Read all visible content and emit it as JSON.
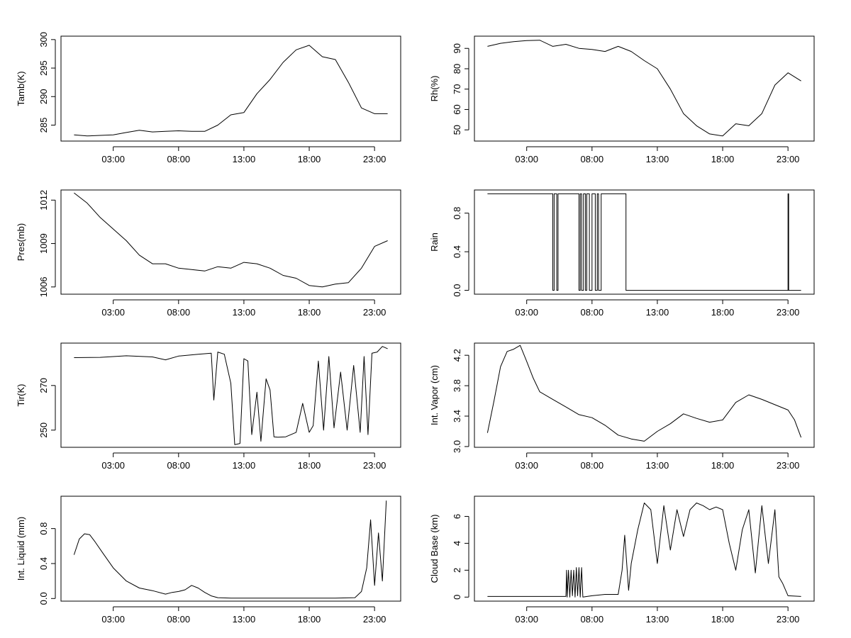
{
  "chart_data": [
    {
      "type": "line",
      "ylabel": "Tamb(K)",
      "xticks": [
        "03:00",
        "08:00",
        "13:00",
        "18:00",
        "23:00"
      ],
      "xtick_hours": [
        3,
        8,
        13,
        18,
        23
      ],
      "xlim": [
        -1,
        25
      ],
      "ylim": [
        282.2,
        300.6
      ],
      "yticks": [
        285,
        290,
        295,
        300
      ],
      "ytick_labels": [
        "285",
        "290",
        "295",
        "300"
      ],
      "series": [
        {
          "name": "Tamb(K)",
          "x": [
            0,
            1,
            2,
            3,
            4,
            5,
            6,
            7,
            8,
            9,
            10,
            11,
            12,
            13,
            14,
            15,
            16,
            17,
            18,
            19,
            20,
            21,
            22,
            23,
            24
          ],
          "y": [
            283.3,
            283.1,
            283.2,
            283.3,
            283.7,
            284.1,
            283.8,
            283.9,
            284.0,
            283.9,
            283.9,
            285.0,
            286.8,
            287.2,
            290.5,
            293.0,
            296.0,
            298.2,
            299.0,
            297.0,
            296.5,
            292.5,
            288.0,
            287.0,
            287.0
          ]
        }
      ]
    },
    {
      "type": "line",
      "ylabel": "Rh(%)",
      "xticks": [
        "03:00",
        "08:00",
        "13:00",
        "18:00",
        "23:00"
      ],
      "xtick_hours": [
        3,
        8,
        13,
        18,
        23
      ],
      "xlim": [
        -1,
        25
      ],
      "ylim": [
        44.5,
        96.0
      ],
      "yticks": [
        50,
        60,
        70,
        80,
        90
      ],
      "ytick_labels": [
        "50",
        "60",
        "70",
        "80",
        "90"
      ],
      "series": [
        {
          "name": "Rh(%)",
          "x": [
            0,
            1,
            2,
            3,
            4,
            5,
            6,
            7,
            8,
            9,
            10,
            11,
            12,
            13,
            14,
            15,
            16,
            17,
            18,
            19,
            20,
            21,
            22,
            23,
            24
          ],
          "y": [
            91,
            92.5,
            93.3,
            93.8,
            94,
            91,
            92,
            90,
            89.5,
            88.5,
            91,
            88.5,
            84,
            80,
            70,
            58,
            52,
            48,
            47,
            53,
            52,
            58,
            72,
            78,
            74
          ]
        }
      ]
    },
    {
      "type": "line",
      "ylabel": "Pres(mb)",
      "xticks": [
        "03:00",
        "08:00",
        "13:00",
        "18:00",
        "23:00"
      ],
      "xtick_hours": [
        3,
        8,
        13,
        18,
        23
      ],
      "xlim": [
        -1,
        25
      ],
      "ylim": [
        1005.5,
        1012.7
      ],
      "yticks": [
        1006,
        1009,
        1012
      ],
      "ytick_labels": [
        "1006",
        "1009",
        "1012"
      ],
      "series": [
        {
          "name": "Pres(mb)",
          "x": [
            0,
            1,
            2,
            3,
            4,
            5,
            6,
            7,
            8,
            9,
            10,
            11,
            12,
            13,
            14,
            15,
            16,
            17,
            18,
            19,
            20,
            21,
            22,
            23,
            24
          ],
          "y": [
            1012.5,
            1011.8,
            1010.8,
            1010.0,
            1009.2,
            1008.2,
            1007.6,
            1007.6,
            1007.3,
            1007.2,
            1007.1,
            1007.4,
            1007.3,
            1007.7,
            1007.6,
            1007.3,
            1006.8,
            1006.6,
            1006.1,
            1006.0,
            1006.2,
            1006.3,
            1007.3,
            1008.8,
            1009.2
          ]
        }
      ]
    },
    {
      "type": "line",
      "ylabel": "Rain",
      "xticks": [
        "03:00",
        "08:00",
        "13:00",
        "18:00",
        "23:00"
      ],
      "xtick_hours": [
        3,
        8,
        13,
        18,
        23
      ],
      "xlim": [
        -1,
        25
      ],
      "ylim": [
        -0.04,
        1.04
      ],
      "yticks": [
        0.0,
        0.4,
        0.8
      ],
      "ytick_labels": [
        "0.0",
        "0.4",
        "0.8"
      ],
      "series": [
        {
          "name": "Rain",
          "x": [
            0,
            5.0,
            5.0,
            5.1,
            5.1,
            5.3,
            5.3,
            5.4,
            5.4,
            7.0,
            7.0,
            7.1,
            7.1,
            7.2,
            7.2,
            7.35,
            7.35,
            7.5,
            7.5,
            7.6,
            7.6,
            7.8,
            7.8,
            8.0,
            8.0,
            8.25,
            8.25,
            8.4,
            8.4,
            8.5,
            8.5,
            8.7,
            8.7,
            10.6,
            10.6,
            10.7,
            10.7,
            23.0,
            23.0,
            23.05,
            23.05,
            24
          ],
          "y": [
            1,
            1,
            0,
            0,
            1,
            1,
            0,
            0,
            1,
            1,
            0,
            0,
            1,
            1,
            0,
            0,
            1,
            1,
            0,
            0,
            1,
            1,
            0,
            0,
            1,
            1,
            0,
            0,
            1,
            1,
            0,
            0,
            1,
            1,
            0,
            0,
            0,
            0,
            1,
            1,
            0,
            0
          ]
        }
      ]
    },
    {
      "type": "line",
      "ylabel": "Tir(K)",
      "xticks": [
        "03:00",
        "08:00",
        "13:00",
        "18:00",
        "23:00"
      ],
      "xtick_hours": [
        3,
        8,
        13,
        18,
        23
      ],
      "xlim": [
        -1,
        25
      ],
      "ylim": [
        242.3,
        289.0
      ],
      "yticks": [
        250,
        270
      ],
      "ytick_labels": [
        "250",
        "270"
      ],
      "series": [
        {
          "name": "Tir(K)",
          "x": [
            0,
            2,
            4,
            6,
            7,
            8,
            9.5,
            10.5,
            10.7,
            11,
            11.5,
            12,
            12.3,
            12.7,
            13.0,
            13.3,
            13.6,
            14.0,
            14.3,
            14.7,
            15.0,
            15.3,
            15.6,
            16.2,
            17.0,
            17.5,
            18.0,
            18.3,
            18.7,
            19.1,
            19.5,
            19.9,
            20.4,
            20.9,
            21.4,
            21.9,
            22.2,
            22.5,
            22.8,
            23.2,
            23.6,
            24
          ],
          "y": [
            282.5,
            282.6,
            283.3,
            282.8,
            281.5,
            283.2,
            284.0,
            284.5,
            263.5,
            285.0,
            284.0,
            271.0,
            243.5,
            244.0,
            282.0,
            281.0,
            248.0,
            267.0,
            245.0,
            273.0,
            268.0,
            247.0,
            246.8,
            247.0,
            249.0,
            262.0,
            249.0,
            252.0,
            281.0,
            250.0,
            283.0,
            251.0,
            276.0,
            250.0,
            279.0,
            249.0,
            283.0,
            248.0,
            284.5,
            285.0,
            287.5,
            286.5
          ]
        }
      ]
    },
    {
      "type": "line",
      "ylabel": "Int. Vapor (cm)",
      "xticks": [
        "03:00",
        "08:00",
        "13:00",
        "18:00",
        "23:00"
      ],
      "xtick_hours": [
        3,
        8,
        13,
        18,
        23
      ],
      "xlim": [
        -1,
        25
      ],
      "ylim": [
        2.99,
        4.36
      ],
      "yticks": [
        3.0,
        3.4,
        3.8,
        4.2
      ],
      "ytick_labels": [
        "3.0",
        "3.4",
        "3.8",
        "4.2"
      ],
      "series": [
        {
          "name": "Int. Vapor (cm)",
          "x": [
            0,
            0.5,
            1,
            1.5,
            2,
            2.5,
            3,
            3.5,
            4,
            5,
            6,
            7,
            8,
            9,
            10,
            11,
            12,
            13,
            14,
            15,
            16,
            17,
            18,
            19,
            20,
            21,
            22,
            23,
            23.5,
            24
          ],
          "y": [
            3.18,
            3.6,
            4.05,
            4.25,
            4.28,
            4.33,
            4.12,
            3.9,
            3.72,
            3.62,
            3.52,
            3.42,
            3.38,
            3.28,
            3.15,
            3.1,
            3.07,
            3.2,
            3.3,
            3.43,
            3.37,
            3.32,
            3.35,
            3.58,
            3.68,
            3.62,
            3.55,
            3.48,
            3.35,
            3.12
          ]
        }
      ]
    },
    {
      "type": "line",
      "ylabel": "Int. Liquid (mm)",
      "xticks": [
        "03:00",
        "08:00",
        "13:00",
        "18:00",
        "23:00"
      ],
      "xtick_hours": [
        3,
        8,
        13,
        18,
        23
      ],
      "xlim": [
        -1,
        25
      ],
      "ylim": [
        -0.03,
        1.17
      ],
      "yticks": [
        0.0,
        0.4,
        0.8
      ],
      "ytick_labels": [
        "0.0",
        "0.4",
        "0.8"
      ],
      "series": [
        {
          "name": "Int. Liquid (mm)",
          "x": [
            0,
            0.4,
            0.8,
            1.2,
            1.6,
            2.2,
            3,
            4,
            5,
            6,
            7,
            7.5,
            8,
            8.5,
            9,
            9.5,
            10,
            10.5,
            11,
            12,
            14,
            16,
            18,
            20,
            21.5,
            22.0,
            22.4,
            22.7,
            23.0,
            23.3,
            23.6,
            23.9
          ],
          "y": [
            0.5,
            0.68,
            0.74,
            0.73,
            0.65,
            0.52,
            0.35,
            0.2,
            0.12,
            0.09,
            0.05,
            0.07,
            0.08,
            0.1,
            0.15,
            0.12,
            0.07,
            0.03,
            0.01,
            0.005,
            0.005,
            0.005,
            0.005,
            0.005,
            0.01,
            0.08,
            0.35,
            0.9,
            0.15,
            0.75,
            0.2,
            1.12
          ]
        }
      ]
    },
    {
      "type": "line",
      "ylabel": "Cloud Base (km)",
      "xticks": [
        "03:00",
        "08:00",
        "13:00",
        "18:00",
        "23:00"
      ],
      "xtick_hours": [
        3,
        8,
        13,
        18,
        23
      ],
      "xlim": [
        -1,
        25
      ],
      "ylim": [
        -0.3,
        7.5
      ],
      "yticks": [
        0,
        2,
        4,
        6
      ],
      "ytick_labels": [
        "0",
        "2",
        "4",
        "6"
      ],
      "series": [
        {
          "name": "Cloud Base (km)",
          "x": [
            0,
            6.0,
            6.05,
            6.1,
            6.2,
            6.3,
            6.4,
            6.5,
            6.6,
            6.7,
            6.8,
            6.9,
            7.0,
            7.1,
            7.2,
            7.3,
            8,
            9,
            10,
            10.3,
            10.5,
            10.8,
            11,
            11.5,
            12,
            12.5,
            13,
            13.5,
            14,
            14.5,
            15,
            15.5,
            16,
            16.5,
            17,
            17.5,
            18,
            18.5,
            19,
            19.5,
            20,
            20.5,
            21,
            21.5,
            22,
            22.3,
            22.6,
            23,
            24
          ],
          "y": [
            0.05,
            0.05,
            2.0,
            0.0,
            2.0,
            0.0,
            2.0,
            0.1,
            2.0,
            0.0,
            2.2,
            0.1,
            2.2,
            0.0,
            2.2,
            0.0,
            0.1,
            0.2,
            0.2,
            2.0,
            4.6,
            0.5,
            2.5,
            5.0,
            7.0,
            6.5,
            2.5,
            6.8,
            3.5,
            6.5,
            4.5,
            6.5,
            7.0,
            6.8,
            6.5,
            6.7,
            6.5,
            4.0,
            2.0,
            5.0,
            6.5,
            1.8,
            6.8,
            2.5,
            6.5,
            1.5,
            1.0,
            0.1,
            0.05
          ]
        }
      ]
    }
  ]
}
